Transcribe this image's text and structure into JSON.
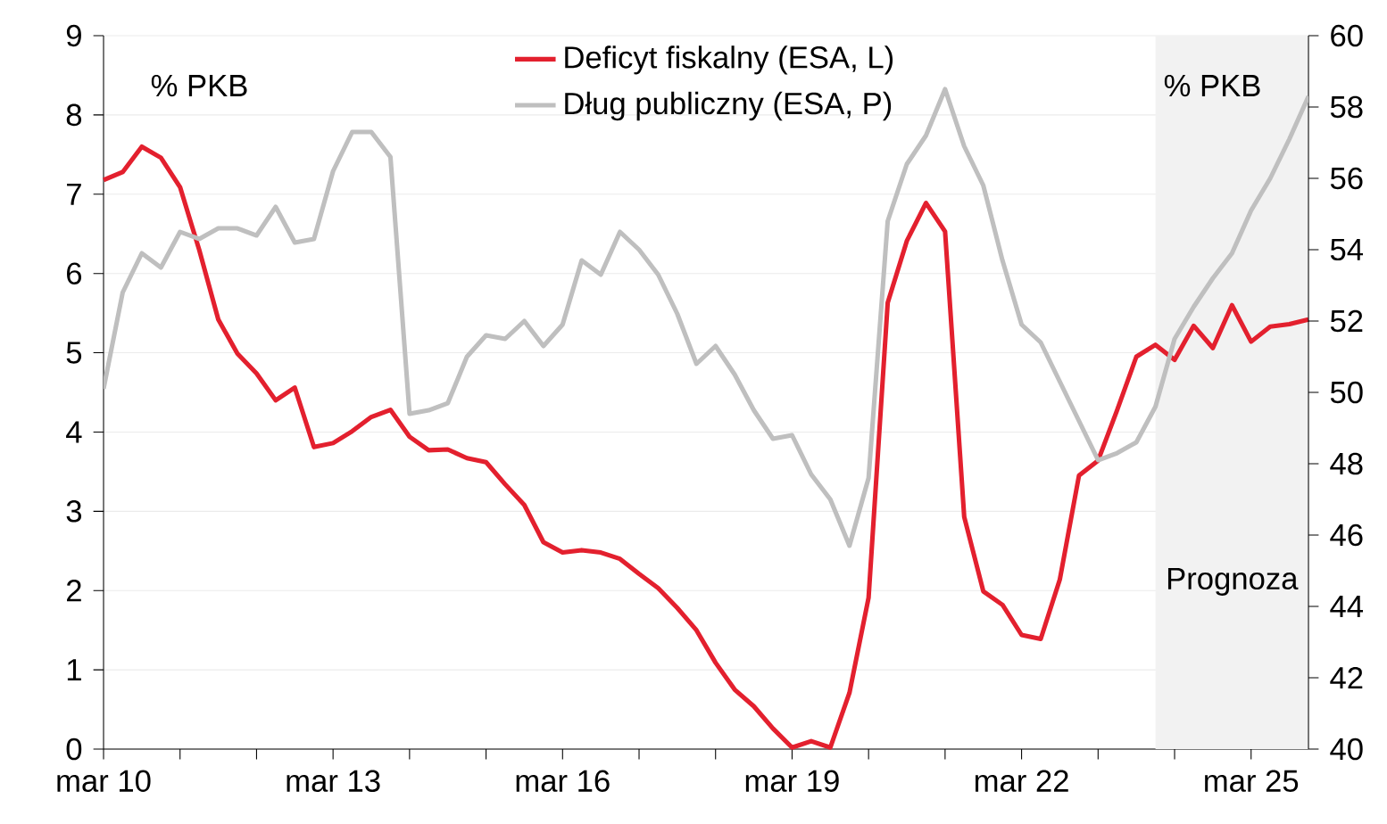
{
  "chart_data": {
    "type": "line",
    "x": [
      "2010-03",
      "2010-06",
      "2010-09",
      "2010-12",
      "2011-03",
      "2011-06",
      "2011-09",
      "2011-12",
      "2012-03",
      "2012-06",
      "2012-09",
      "2012-12",
      "2013-03",
      "2013-06",
      "2013-09",
      "2013-12",
      "2014-03",
      "2014-06",
      "2014-09",
      "2014-12",
      "2015-03",
      "2015-06",
      "2015-09",
      "2015-12",
      "2016-03",
      "2016-06",
      "2016-09",
      "2016-12",
      "2017-03",
      "2017-06",
      "2017-09",
      "2017-12",
      "2018-03",
      "2018-06",
      "2018-09",
      "2018-12",
      "2019-03",
      "2019-06",
      "2019-09",
      "2019-12",
      "2020-03",
      "2020-06",
      "2020-09",
      "2020-12",
      "2021-03",
      "2021-06",
      "2021-09",
      "2021-12",
      "2022-03",
      "2022-06",
      "2022-09",
      "2022-12",
      "2023-03",
      "2023-06",
      "2023-09",
      "2023-12",
      "2024-03",
      "2024-06",
      "2024-09",
      "2024-12",
      "2025-03",
      "2025-06",
      "2025-09",
      "2025-12"
    ],
    "series": [
      {
        "name": "Deficyt fiskalny (ESA, L)",
        "color": "#e3202e",
        "values": [
          7.18,
          7.28,
          7.6,
          7.46,
          7.09,
          6.3,
          5.42,
          4.99,
          4.74,
          4.4,
          4.56,
          3.81,
          3.86,
          4.01,
          4.19,
          4.28,
          3.94,
          3.77,
          3.78,
          3.67,
          3.62,
          3.34,
          3.08,
          2.61,
          2.48,
          2.51,
          2.48,
          2.4,
          2.21,
          2.03,
          1.78,
          1.5,
          1.09,
          0.75,
          0.54,
          0.26,
          0.02,
          0.1,
          0.02,
          0.71,
          1.91,
          5.63,
          6.41,
          6.89,
          6.53,
          2.93,
          1.99,
          1.82,
          1.44,
          1.39,
          2.14,
          3.45,
          3.64,
          4.28,
          4.95,
          5.1,
          4.91,
          5.34,
          5.06,
          5.6,
          5.14,
          5.33,
          5.36,
          5.42
        ]
      },
      {
        "name": "Dług publiczny (ESA, P)",
        "color": "#bfbfbf",
        "axis": "y2",
        "values": [
          50.1,
          52.8,
          53.9,
          53.5,
          54.5,
          54.3,
          54.6,
          54.6,
          54.4,
          55.2,
          54.2,
          54.3,
          56.2,
          57.3,
          57.3,
          56.6,
          49.4,
          49.5,
          49.7,
          51.0,
          51.6,
          51.5,
          52.0,
          51.3,
          51.9,
          53.7,
          53.3,
          54.5,
          54.0,
          53.3,
          52.2,
          50.8,
          51.3,
          50.5,
          49.5,
          48.7,
          48.8,
          47.7,
          47.0,
          45.7,
          47.6,
          54.8,
          56.4,
          57.2,
          58.5,
          56.9,
          55.8,
          53.7,
          51.9,
          51.4,
          50.3,
          49.2,
          48.1,
          48.3,
          48.6,
          49.6,
          51.5,
          52.4,
          53.2,
          53.9,
          55.1,
          56.0,
          57.1,
          58.3
        ]
      }
    ],
    "xlim": [
      "2010-03",
      "2025-12"
    ],
    "xticks": [
      {
        "value": "2010-03",
        "label": "mar 10"
      },
      {
        "value": "2011-03",
        "label": null
      },
      {
        "value": "2012-03",
        "label": null
      },
      {
        "value": "2013-03",
        "label": "mar 13"
      },
      {
        "value": "2014-03",
        "label": null
      },
      {
        "value": "2015-03",
        "label": null
      },
      {
        "value": "2016-03",
        "label": "mar 16"
      },
      {
        "value": "2017-03",
        "label": null
      },
      {
        "value": "2018-03",
        "label": null
      },
      {
        "value": "2019-03",
        "label": "mar 19"
      },
      {
        "value": "2020-03",
        "label": null
      },
      {
        "value": "2021-03",
        "label": null
      },
      {
        "value": "2022-03",
        "label": "mar 22"
      },
      {
        "value": "2023-03",
        "label": null
      },
      {
        "value": "2024-03",
        "label": null
      },
      {
        "value": "2025-03",
        "label": "mar 25"
      }
    ],
    "ylim": [
      0,
      9
    ],
    "yticks": [
      0,
      1,
      2,
      3,
      4,
      5,
      6,
      7,
      8,
      9
    ],
    "y2lim": [
      40,
      60
    ],
    "y2ticks": [
      40,
      42,
      44,
      46,
      48,
      50,
      52,
      54,
      56,
      58,
      60
    ],
    "bands": [
      {
        "axis": "x",
        "from": "2023-12",
        "to": "2025-12",
        "label": "Prognoza",
        "color": "#f2f2f2"
      }
    ],
    "annotations": [
      "% PKB",
      "% PKB"
    ],
    "grid": "y",
    "legend": "top"
  }
}
